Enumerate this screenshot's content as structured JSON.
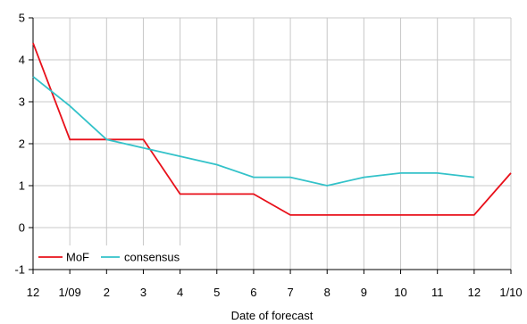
{
  "chart_data": {
    "type": "line",
    "xlabel": "Date of forecast",
    "ylabel": "",
    "ylim": [
      -1,
      5
    ],
    "yticks": [
      -1,
      0,
      1,
      2,
      3,
      4,
      5
    ],
    "categories": [
      "12",
      "1/09",
      "2",
      "3",
      "4",
      "5",
      "6",
      "7",
      "8",
      "9",
      "10",
      "11",
      "12",
      "1/10"
    ],
    "grid": true,
    "legend_position": "bottom-left",
    "series": [
      {
        "name": "MoF",
        "color": "#e8101a",
        "values": [
          4.4,
          2.1,
          2.1,
          2.1,
          0.8,
          0.8,
          0.8,
          0.3,
          0.3,
          0.3,
          0.3,
          0.3,
          0.3,
          1.3
        ]
      },
      {
        "name": "consensus",
        "color": "#33c2c9",
        "values": [
          3.6,
          2.9,
          2.1,
          1.9,
          1.7,
          1.5,
          1.2,
          1.2,
          1.0,
          1.2,
          1.3,
          1.3,
          1.2,
          null
        ]
      }
    ]
  }
}
